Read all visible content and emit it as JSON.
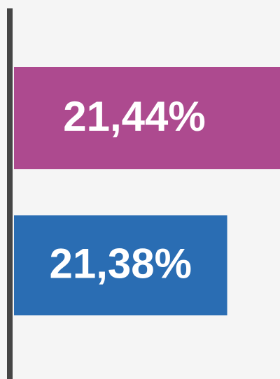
{
  "chart_data": {
    "type": "hbar",
    "values": [
      21.44,
      21.38
    ],
    "value_labels": [
      "21,44%",
      "21,38%"
    ],
    "colors": [
      "#ad4a8f",
      "#2a6db3"
    ],
    "xlim": [
      21.3,
      21.45
    ]
  }
}
